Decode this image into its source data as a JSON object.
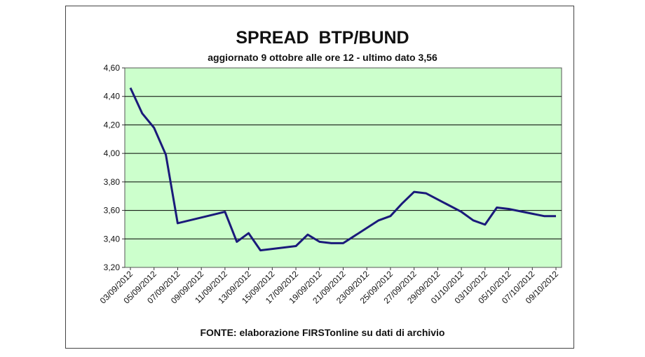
{
  "chart_data": {
    "type": "line",
    "title": "SPREAD  BTP/BUND",
    "subtitle": "aggiornato 9 ottobre alle ore 12 - ultimo dato 3,56",
    "source": "FONTE: elaborazione FIRSTonline su dati di archivio",
    "ylim": [
      3.2,
      4.6
    ],
    "y_ticks": [
      "3,20",
      "3,40",
      "3,60",
      "3,80",
      "4,00",
      "4,20",
      "4,40",
      "4,60"
    ],
    "x_ticks": [
      "03/09/2012",
      "05/09/2012",
      "07/09/2012",
      "09/09/2012",
      "11/09/2012",
      "13/09/2012",
      "15/09/2012",
      "17/09/2012",
      "19/09/2012",
      "21/09/2012",
      "23/09/2012",
      "25/09/2012",
      "27/09/2012",
      "29/09/2012",
      "01/10/2012",
      "03/10/2012",
      "05/10/2012",
      "07/10/2012",
      "09/10/2012"
    ],
    "grid": true,
    "colors": {
      "plot_background": "#ccffcc",
      "line": "#1a1a7a",
      "grid": "#000000"
    },
    "points": [
      {
        "x": "03/09/2012",
        "y": 4.46
      },
      {
        "x": "04/09/2012",
        "y": 4.28
      },
      {
        "x": "05/09/2012",
        "y": 4.18
      },
      {
        "x": "06/09/2012",
        "y": 3.99
      },
      {
        "x": "07/09/2012",
        "y": 3.51
      },
      {
        "x": "10/09/2012",
        "y": 3.57
      },
      {
        "x": "11/09/2012",
        "y": 3.59
      },
      {
        "x": "12/09/2012",
        "y": 3.38
      },
      {
        "x": "13/09/2012",
        "y": 3.44
      },
      {
        "x": "14/09/2012",
        "y": 3.32
      },
      {
        "x": "17/09/2012",
        "y": 3.35
      },
      {
        "x": "18/09/2012",
        "y": 3.43
      },
      {
        "x": "19/09/2012",
        "y": 3.38
      },
      {
        "x": "20/09/2012",
        "y": 3.37
      },
      {
        "x": "21/09/2012",
        "y": 3.37
      },
      {
        "x": "24/09/2012",
        "y": 3.53
      },
      {
        "x": "25/09/2012",
        "y": 3.56
      },
      {
        "x": "26/09/2012",
        "y": 3.65
      },
      {
        "x": "27/09/2012",
        "y": 3.73
      },
      {
        "x": "28/09/2012",
        "y": 3.72
      },
      {
        "x": "01/10/2012",
        "y": 3.59
      },
      {
        "x": "02/10/2012",
        "y": 3.53
      },
      {
        "x": "03/10/2012",
        "y": 3.5
      },
      {
        "x": "04/10/2012",
        "y": 3.62
      },
      {
        "x": "05/10/2012",
        "y": 3.61
      },
      {
        "x": "08/10/2012",
        "y": 3.56
      },
      {
        "x": "09/10/2012",
        "y": 3.56
      }
    ]
  }
}
